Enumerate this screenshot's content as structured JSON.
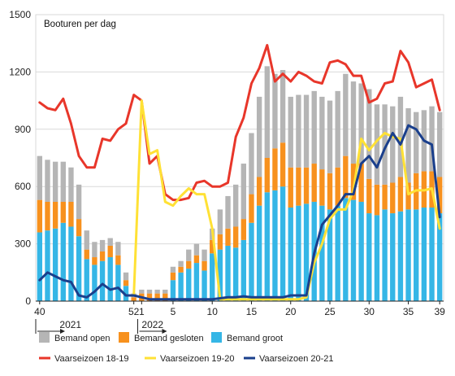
{
  "chart_data": {
    "type": "bar",
    "title": "Booturen per dag",
    "ylim": [
      0,
      1500
    ],
    "y_ticks": [
      0,
      300,
      600,
      900,
      1200,
      1500
    ],
    "x_tick_labels": [
      {
        "week": 40,
        "label": "40"
      },
      {
        "week": 52,
        "label": "52"
      },
      {
        "week": 1,
        "label": "1"
      },
      {
        "week": 5,
        "label": "5"
      },
      {
        "week": 10,
        "label": "10"
      },
      {
        "week": 15,
        "label": "15"
      },
      {
        "week": 20,
        "label": "20"
      },
      {
        "week": 25,
        "label": "25"
      },
      {
        "week": 30,
        "label": "30"
      },
      {
        "week": 35,
        "label": "35"
      },
      {
        "week": 39,
        "label": "39"
      }
    ],
    "year_labels": [
      {
        "label": "2021",
        "from_index": 0
      },
      {
        "label": "2022",
        "from_index": 13
      }
    ],
    "weeks": [
      40,
      41,
      42,
      43,
      44,
      45,
      46,
      47,
      48,
      49,
      50,
      51,
      52,
      1,
      2,
      3,
      4,
      5,
      6,
      7,
      8,
      9,
      10,
      11,
      12,
      13,
      14,
      15,
      16,
      17,
      18,
      19,
      20,
      21,
      22,
      23,
      24,
      25,
      26,
      27,
      28,
      29,
      30,
      31,
      32,
      33,
      34,
      35,
      36,
      37,
      38,
      39
    ],
    "series": [
      {
        "name": "Bemand groot",
        "kind": "bar",
        "color": "#35b6e6",
        "values": [
          360,
          370,
          380,
          410,
          390,
          340,
          220,
          190,
          210,
          230,
          190,
          80,
          0,
          0,
          0,
          0,
          0,
          110,
          150,
          170,
          200,
          160,
          250,
          270,
          290,
          280,
          320,
          410,
          500,
          570,
          580,
          600,
          490,
          500,
          510,
          520,
          500,
          480,
          500,
          540,
          530,
          520,
          460,
          450,
          480,
          460,
          470,
          480,
          480,
          490,
          490,
          460
        ]
      },
      {
        "name": "Bemand gesloten",
        "kind": "bar",
        "color": "#f7911e",
        "values": [
          170,
          150,
          140,
          110,
          130,
          90,
          50,
          40,
          50,
          60,
          50,
          30,
          20,
          40,
          40,
          40,
          40,
          40,
          30,
          40,
          40,
          50,
          70,
          80,
          90,
          110,
          110,
          150,
          150,
          180,
          220,
          230,
          210,
          200,
          190,
          200,
          190,
          190,
          200,
          220,
          190,
          200,
          180,
          160,
          130,
          160,
          180,
          140,
          190,
          190,
          190,
          190
        ]
      },
      {
        "name": "Bemand open",
        "kind": "bar",
        "color": "#b5b5b5",
        "values": [
          230,
          220,
          210,
          210,
          180,
          180,
          100,
          80,
          60,
          40,
          70,
          40,
          20,
          20,
          20,
          20,
          20,
          30,
          30,
          60,
          60,
          60,
          60,
          130,
          170,
          220,
          290,
          320,
          420,
          480,
          390,
          380,
          370,
          380,
          380,
          380,
          380,
          380,
          400,
          430,
          430,
          420,
          470,
          420,
          420,
          400,
          420,
          390,
          320,
          320,
          340,
          340
        ]
      },
      {
        "name": "Vaarseizoen 18-19",
        "kind": "line",
        "color": "#e8362a",
        "values": [
          1040,
          1010,
          1000,
          1060,
          930,
          760,
          700,
          700,
          850,
          840,
          900,
          930,
          1080,
          1050,
          720,
          760,
          560,
          530,
          530,
          540,
          620,
          630,
          600,
          600,
          620,
          860,
          960,
          1140,
          1220,
          1340,
          1150,
          1190,
          1150,
          1200,
          1180,
          1150,
          1140,
          1250,
          1260,
          1240,
          1180,
          1180,
          1040,
          1060,
          1140,
          1150,
          1310,
          1250,
          1120,
          1140,
          1160,
          1000
        ]
      },
      {
        "name": "Vaarseizoen 19-20",
        "kind": "line",
        "color": "#ffe135",
        "values": [
          null,
          null,
          null,
          null,
          null,
          null,
          null,
          null,
          null,
          null,
          null,
          null,
          30,
          1050,
          770,
          790,
          520,
          500,
          550,
          590,
          560,
          560,
          380,
          10,
          10,
          10,
          10,
          10,
          10,
          10,
          10,
          10,
          10,
          10,
          20,
          200,
          300,
          430,
          480,
          480,
          580,
          850,
          790,
          840,
          880,
          860,
          850,
          560,
          580,
          580,
          590,
          380
        ]
      },
      {
        "name": "Vaarseizoen 20-21",
        "kind": "line",
        "color": "#1a3f8c",
        "values": [
          110,
          150,
          130,
          110,
          100,
          30,
          20,
          50,
          90,
          60,
          70,
          30,
          30,
          20,
          10,
          10,
          10,
          10,
          10,
          10,
          10,
          10,
          10,
          15,
          20,
          20,
          25,
          20,
          20,
          20,
          20,
          20,
          30,
          30,
          30,
          250,
          400,
          450,
          500,
          560,
          560,
          720,
          760,
          700,
          800,
          880,
          820,
          920,
          900,
          840,
          820,
          440
        ]
      }
    ]
  }
}
